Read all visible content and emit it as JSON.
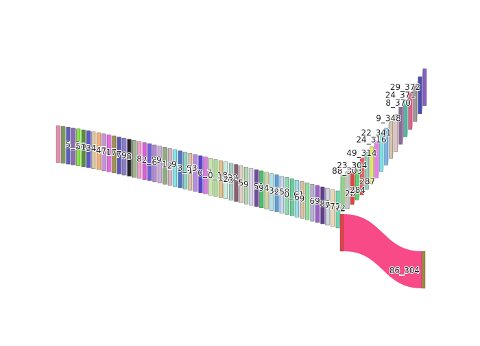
{
  "chart_data": {
    "type": "sankey",
    "title": "",
    "nodes": [
      {
        "label": "",
        "color": "#e38fb1"
      },
      {
        "label": "5_5",
        "color": "#7c9a5b"
      },
      {
        "label": "",
        "color": "#5b5fc7"
      },
      {
        "label": "50",
        "color": "#8b6ba8"
      },
      {
        "label": "1",
        "color": "#7fea3a"
      },
      {
        "label": "34",
        "color": "#5c8d3f"
      },
      {
        "label": "",
        "color": "#5b55cf"
      },
      {
        "label": "47",
        "color": "#e2c9a2"
      },
      {
        "label": "7",
        "color": "#f3b17e"
      },
      {
        "label": "17",
        "color": "#c991d9"
      },
      {
        "label": "",
        "color": "#e56be0"
      },
      {
        "label": "7",
        "color": "#a3934a"
      },
      {
        "label": "9",
        "color": "#5b55b7"
      },
      {
        "label": "8",
        "color": "#8a7bcf"
      },
      {
        "label": "",
        "color": "#222222"
      },
      {
        "label": "8",
        "color": "#9fb18d"
      },
      {
        "label": "2_89",
        "color": "#f19dcc"
      },
      {
        "label": "",
        "color": "#d95fdd"
      },
      {
        "label": "6",
        "color": "#6d5fd9"
      },
      {
        "label": "",
        "color": "#b78ccf"
      },
      {
        "label": "1_9",
        "color": "#c8b0d8"
      },
      {
        "label": "2",
        "color": "#90ab7f"
      },
      {
        "label": "",
        "color": "#d7b3c9"
      },
      {
        "label": "3_93",
        "color": "#7fe7e7"
      },
      {
        "label": "",
        "color": "#4f73c7"
      },
      {
        "label": "1",
        "color": "#8fd3c0"
      },
      {
        "label": "",
        "color": "#e0c0a8"
      },
      {
        "label": "0_7",
        "color": "#b48be0"
      },
      {
        "label": "",
        "color": "#5b3fd9"
      },
      {
        "label": "0_18",
        "color": "#e07de0"
      },
      {
        "label": "",
        "color": "#c8e8a8"
      },
      {
        "label": "1_22",
        "color": "#b0e0a0"
      },
      {
        "label": "2",
        "color": "#e6c28a"
      },
      {
        "label": "3",
        "color": "#c7ece0"
      },
      {
        "label": "",
        "color": "#a9cfc3"
      },
      {
        "label": "5",
        "color": "#8a5c75"
      },
      {
        "label": "9",
        "color": "#d9d0c0"
      },
      {
        "label": "",
        "color": "#b0d8b0"
      },
      {
        "label": "51",
        "color": "#e0d0f0"
      },
      {
        "label": "94",
        "color": "#6b4f9a"
      },
      {
        "label": "",
        "color": "#4dbf6d"
      },
      {
        "label": "30",
        "color": "#d7d4a8"
      },
      {
        "label": "259",
        "color": "#b0e0e8"
      },
      {
        "label": "",
        "color": "#5f9fd7"
      },
      {
        "label": "0_61",
        "color": "#c9d8f0"
      },
      {
        "label": "",
        "color": "#8fd9b0"
      },
      {
        "label": "6",
        "color": "#64d39a"
      },
      {
        "label": "9",
        "color": "#a8d8f0"
      },
      {
        "label": "",
        "color": "#d9c1a0"
      },
      {
        "label": "69",
        "color": "#8fe0a0"
      },
      {
        "label": "",
        "color": "#b8b0d8"
      },
      {
        "label": "88",
        "color": "#9b5fc7"
      },
      {
        "label": "7",
        "color": "#5d3f8b"
      },
      {
        "label": "72",
        "color": "#d1d8e0"
      },
      {
        "label": "72",
        "color": "#e8d8b0"
      },
      {
        "label": "",
        "color": "#6bd9b0"
      },
      {
        "label": "28",
        "color": "#9bd58a"
      },
      {
        "label": "284",
        "color": "#c7c7c7"
      },
      {
        "label": "",
        "color": "#e34343"
      },
      {
        "label": "287",
        "color": "#5fd070"
      },
      {
        "label": "",
        "color": "#f25a5a"
      },
      {
        "label": "88_303",
        "color": "#8fd3c0"
      },
      {
        "label": "23_304",
        "color": "#e2e66a"
      },
      {
        "label": "",
        "color": "#e67cf3"
      },
      {
        "label": "49_314",
        "color": "#7de0e6"
      },
      {
        "label": "",
        "color": "#77b6f0"
      },
      {
        "label": "24_316",
        "color": "#d5c5a8"
      },
      {
        "label": "22_341",
        "color": "#e0c2c8"
      },
      {
        "label": "",
        "color": "#8a6a9a"
      },
      {
        "label": "9_348",
        "color": "#58b5a3"
      },
      {
        "label": "",
        "color": "#e85f8a"
      },
      {
        "label": "8_370",
        "color": "#9a9a9a"
      },
      {
        "label": "24_371",
        "color": "#4b4bb5"
      },
      {
        "label": "29_372",
        "color": "#8a5fc0"
      },
      {
        "label": "86_304",
        "color": "#a08840"
      }
    ],
    "links": [
      {
        "target": "86_304",
        "color": "#f74080"
      }
    ]
  }
}
